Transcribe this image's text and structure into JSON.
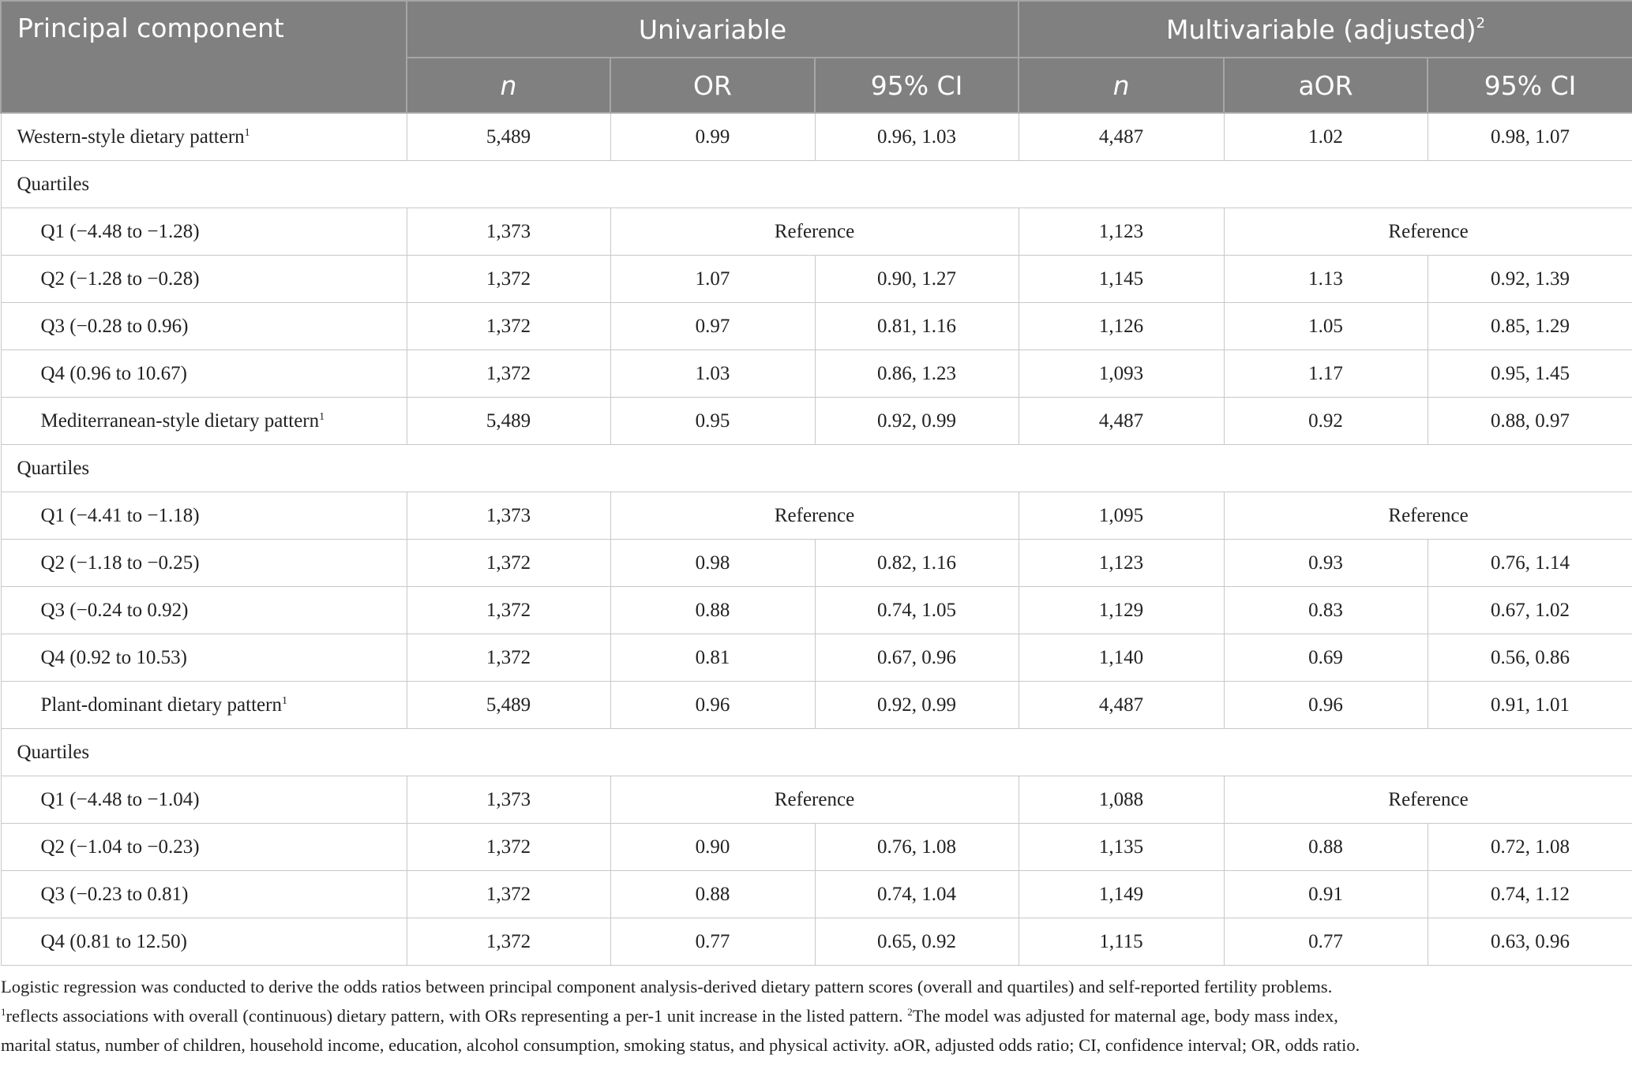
{
  "header": {
    "principal_component": "Principal component",
    "univariable": "Univariable",
    "multivariable": "Multivariable (adjusted)",
    "multivariable_sup": "2",
    "sub": [
      "n",
      "OR",
      "95% CI",
      "n",
      "aOR",
      "95% CI"
    ]
  },
  "rows": [
    {
      "type": "pattern",
      "label": "Western-style dietary pattern",
      "sup": "1",
      "cells": [
        "5,489",
        "0.99",
        "0.96, 1.03",
        "4,487",
        "1.02",
        "0.98, 1.07"
      ]
    },
    {
      "type": "section",
      "label": "Quartiles"
    },
    {
      "type": "ref",
      "label": "Q1 (−4.48 to −1.28)",
      "n1": "1,373",
      "ref": "Reference",
      "n2": "1,123"
    },
    {
      "type": "q",
      "label": "Q2 (−1.28 to −0.28)",
      "cells": [
        "1,372",
        "1.07",
        "0.90, 1.27",
        "1,145",
        "1.13",
        "0.92, 1.39"
      ]
    },
    {
      "type": "q",
      "label": "Q3 (−0.28 to 0.96)",
      "cells": [
        "1,372",
        "0.97",
        "0.81, 1.16",
        "1,126",
        "1.05",
        "0.85, 1.29"
      ]
    },
    {
      "type": "q",
      "label": "Q4 (0.96 to 10.67)",
      "cells": [
        "1,372",
        "1.03",
        "0.86, 1.23",
        "1,093",
        "1.17",
        "0.95, 1.45"
      ]
    },
    {
      "type": "pattern-ind",
      "label": "Mediterranean-style dietary pattern",
      "sup": "1",
      "cells": [
        "5,489",
        "0.95",
        "0.92, 0.99",
        "4,487",
        "0.92",
        "0.88, 0.97"
      ]
    },
    {
      "type": "section",
      "label": "Quartiles"
    },
    {
      "type": "ref",
      "label": "Q1 (−4.41 to −1.18)",
      "n1": "1,373",
      "ref": "Reference",
      "n2": "1,095"
    },
    {
      "type": "q",
      "label": "Q2 (−1.18 to −0.25)",
      "cells": [
        "1,372",
        "0.98",
        "0.82, 1.16",
        "1,123",
        "0.93",
        "0.76, 1.14"
      ]
    },
    {
      "type": "q",
      "label": "Q3 (−0.24 to 0.92)",
      "cells": [
        "1,372",
        "0.88",
        "0.74, 1.05",
        "1,129",
        "0.83",
        "0.67, 1.02"
      ]
    },
    {
      "type": "q",
      "label": "Q4 (0.92 to 10.53)",
      "cells": [
        "1,372",
        "0.81",
        "0.67, 0.96",
        "1,140",
        "0.69",
        "0.56, 0.86"
      ]
    },
    {
      "type": "pattern-ind",
      "label": "Plant-dominant dietary pattern",
      "sup": "1",
      "cells": [
        "5,489",
        "0.96",
        "0.92, 0.99",
        "4,487",
        "0.96",
        "0.91, 1.01"
      ]
    },
    {
      "type": "section",
      "label": "Quartiles"
    },
    {
      "type": "ref",
      "label": "Q1 (−4.48 to −1.04)",
      "n1": "1,373",
      "ref": "Reference",
      "n2": "1,088"
    },
    {
      "type": "q",
      "label": "Q2 (−1.04 to −0.23)",
      "cells": [
        "1,372",
        "0.90",
        "0.76, 1.08",
        "1,135",
        "0.88",
        "0.72, 1.08"
      ]
    },
    {
      "type": "q",
      "label": "Q3 (−0.23 to 0.81)",
      "cells": [
        "1,372",
        "0.88",
        "0.74, 1.04",
        "1,149",
        "0.91",
        "0.74, 1.12"
      ]
    },
    {
      "type": "q",
      "label": "Q4 (0.81 to 12.50)",
      "cells": [
        "1,372",
        "0.77",
        "0.65, 0.92",
        "1,115",
        "0.77",
        "0.63, 0.96"
      ]
    }
  ],
  "footnote": {
    "line1": "Logistic regression was conducted to derive the odds ratios between principal component analysis-derived dietary pattern scores (overall and quartiles) and self-reported fertility problems.",
    "sup1": "1",
    "line2a": "reflects associations with overall (continuous) dietary pattern, with ORs representing a per-1 unit increase in the listed pattern. ",
    "sup2": "2",
    "line2b": "The model was adjusted for maternal age, body mass index,",
    "line3": "marital status, number of children, household income, education, alcohol consumption, smoking status, and physical activity. aOR, adjusted odds ratio; CI, confidence interval; OR, odds ratio."
  },
  "colors": {
    "header_bg": "#808080",
    "header_text": "#ffffff",
    "border": "#c8c8c8"
  }
}
